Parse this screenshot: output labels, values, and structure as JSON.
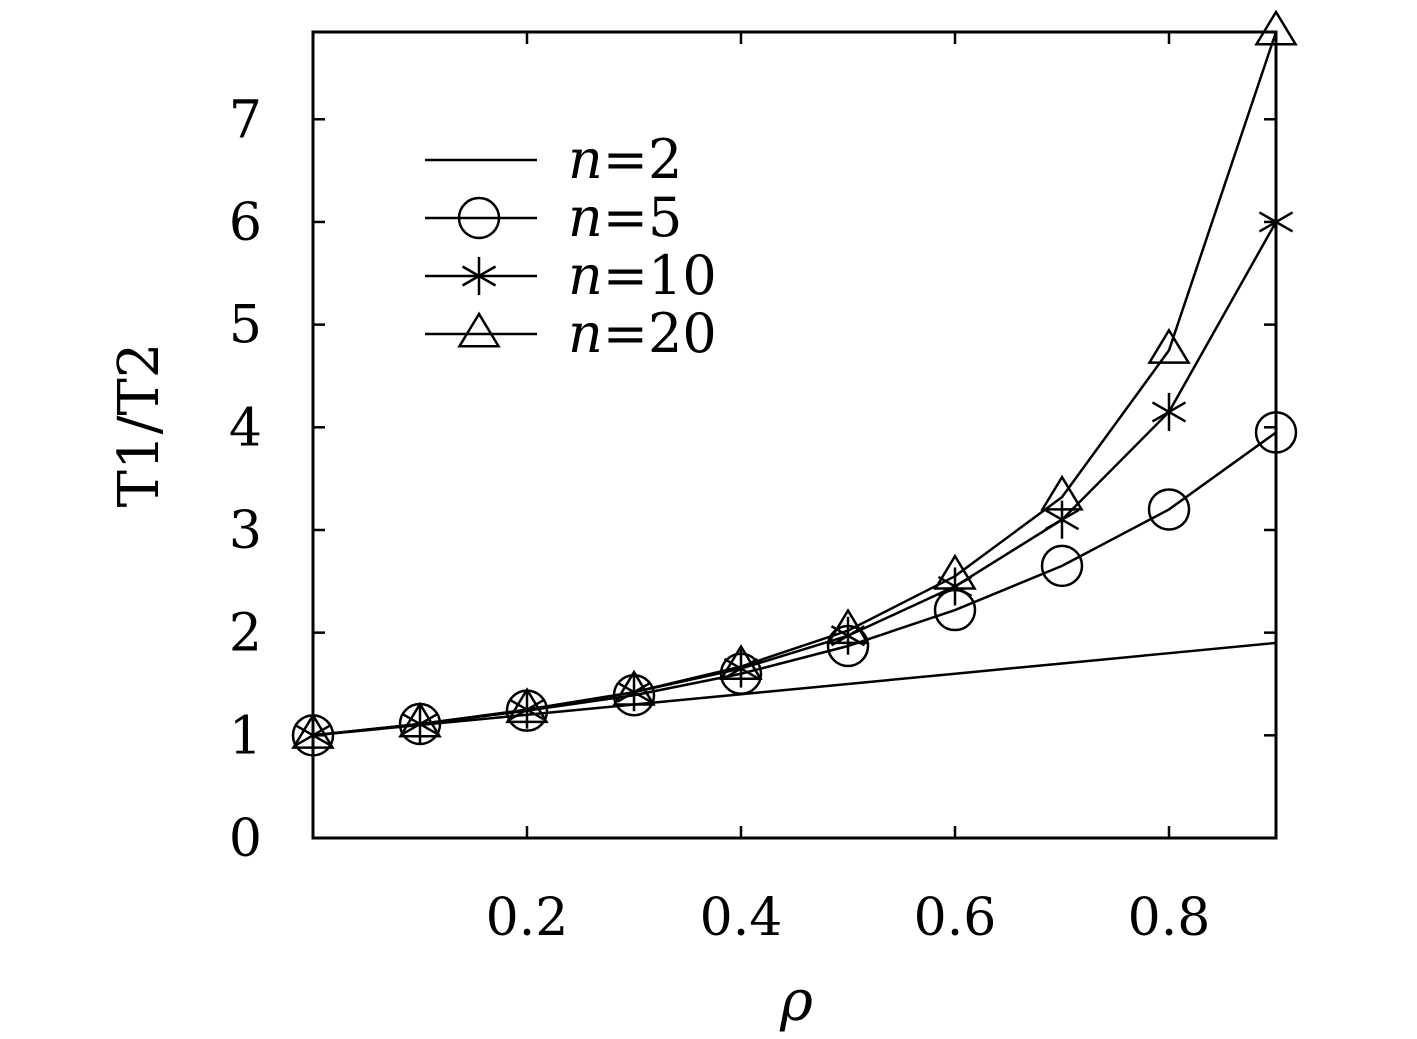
{
  "chart_data": {
    "type": "line",
    "xlabel": "ρ",
    "ylabel": "T1/T2",
    "xlim": [
      0,
      0.9
    ],
    "ylim": [
      0,
      7.85
    ],
    "x_ticks": [
      0.2,
      0.4,
      0.6,
      0.8
    ],
    "x_tick_labels": [
      "0.2",
      "0.4",
      "0.6",
      "0.8"
    ],
    "y_ticks": [
      0,
      1,
      2,
      3,
      4,
      5,
      6,
      7
    ],
    "y_tick_labels": [
      "0",
      "1",
      "2",
      "3",
      "4",
      "5",
      "6",
      "7"
    ],
    "grid": false,
    "legend_position": "top-left",
    "x": [
      0.0,
      0.1,
      0.2,
      0.3,
      0.4,
      0.5,
      0.6,
      0.7,
      0.8,
      0.9
    ],
    "series": [
      {
        "name": "n=2",
        "legend_var": "n",
        "legend_rest": "=2",
        "marker": "none",
        "values": [
          1.0,
          1.1,
          1.2,
          1.3,
          1.4,
          1.5,
          1.6,
          1.7,
          1.8,
          1.9
        ]
      },
      {
        "name": "n=5",
        "legend_var": "n",
        "legend_rest": "=5",
        "marker": "circle",
        "values": [
          1.0,
          1.11,
          1.24,
          1.39,
          1.6,
          1.87,
          2.22,
          2.65,
          3.2,
          3.95
        ]
      },
      {
        "name": "n=10",
        "legend_var": "n",
        "legend_rest": "=10",
        "marker": "star",
        "values": [
          1.0,
          1.11,
          1.25,
          1.42,
          1.65,
          1.97,
          2.45,
          3.1,
          4.15,
          6.0
        ]
      },
      {
        "name": "n=20",
        "legend_var": "n",
        "legend_rest": "=20",
        "marker": "triangle",
        "values": [
          1.0,
          1.11,
          1.25,
          1.42,
          1.67,
          2.02,
          2.55,
          3.32,
          4.75,
          7.85
        ]
      }
    ],
    "colors": {
      "line": "#000000",
      "background": "#ffffff"
    }
  }
}
